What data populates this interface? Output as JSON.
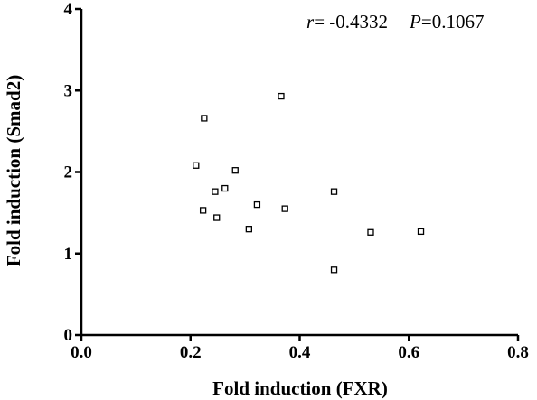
{
  "chart_data": {
    "type": "scatter",
    "title": "",
    "xlabel": "Fold induction (FXR)",
    "ylabel": "Fold induction (Smad2)",
    "xlim": [
      0,
      0.8
    ],
    "ylim": [
      0,
      4
    ],
    "x_ticks": [
      "0.0",
      "0.2",
      "0.4",
      "0.6",
      "0.8"
    ],
    "y_ticks": [
      "0",
      "1",
      "2",
      "3",
      "4"
    ],
    "grid": false,
    "legend": "none",
    "marker": "open-square",
    "colors": {
      "marker": "#000000",
      "axis": "#000000"
    },
    "annotation": {
      "r_symbol": "r",
      "r_value": "= -0.4332",
      "p_symbol": "P",
      "p_value": "=0.1067"
    },
    "series": [
      {
        "x": [
          0.225,
          0.21,
          0.282,
          0.263,
          0.245,
          0.223,
          0.248,
          0.322,
          0.373,
          0.307,
          0.366,
          0.463,
          0.463,
          0.53,
          0.622
        ],
        "y": [
          2.66,
          2.08,
          2.02,
          1.8,
          1.76,
          1.53,
          1.44,
          1.6,
          1.55,
          1.3,
          2.93,
          1.76,
          0.8,
          1.26,
          1.27
        ]
      }
    ]
  }
}
